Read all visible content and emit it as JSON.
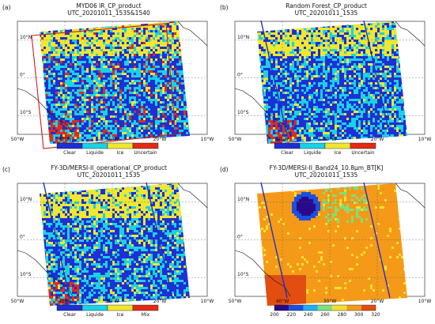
{
  "figure": {
    "panels": [
      {
        "label": "(a)",
        "title_line1": "MYD06 IR_CP_product",
        "title_line2": "UTC_20201011_1535&1540",
        "legend_type": "categorical",
        "legend_labels": [
          "Clear",
          "Liquide",
          "Ice",
          "Uncertain"
        ],
        "legend_colors": [
          "#1e2fd6",
          "#19d2e6",
          "#f0e72e",
          "#e62a12"
        ],
        "overlay_box_color": "#cc1a1a",
        "swath_line_color": ""
      },
      {
        "label": "(b)",
        "title_line1": "Random Forest_CP_product",
        "title_line2": "UTC_20201011_1535",
        "legend_type": "categorical",
        "legend_labels": [
          "Clear",
          "Liquide",
          "Ice",
          "Uncertain"
        ],
        "legend_colors": [
          "#1e2fd6",
          "#19d2e6",
          "#f0e72e",
          "#e62a12"
        ],
        "overlay_box_color": "",
        "swath_line_color": "#1f2fc8"
      },
      {
        "label": "(c)",
        "title_line1": "FY-3D/MERSI-II_operational_CP_product",
        "title_line2": "UTC_20201011_1535",
        "legend_type": "categorical",
        "legend_labels": [
          "Clear",
          "Liquide",
          "Ice",
          "Mix"
        ],
        "legend_colors": [
          "#1e2fd6",
          "#19d2e6",
          "#f0e72e",
          "#e62a12"
        ],
        "overlay_box_color": "",
        "swath_line_color": "#1f2fc8"
      },
      {
        "label": "(d)",
        "title_line1": "FY-3D/MERSI-II_Band24_10.8μm_BT[K]",
        "title_line2": "UTC_20201011_1535",
        "legend_type": "continuous",
        "legend_labels": [
          "200",
          "220",
          "240",
          "260",
          "280",
          "300",
          "320"
        ],
        "legend_colors": [
          "#2a0a8a",
          "#1b4fe0",
          "#1fb0f0",
          "#7ee07a",
          "#f2e030",
          "#f59a18",
          "#e24e10"
        ],
        "overlay_box_color": "",
        "swath_line_color": "#1f2fc8"
      }
    ],
    "axes": {
      "lat_labels": [
        "10°N",
        "0°",
        "10°S"
      ],
      "lon_labels": [
        "50°W",
        "40°W",
        "30°W",
        "20°W",
        "10°W"
      ]
    }
  }
}
